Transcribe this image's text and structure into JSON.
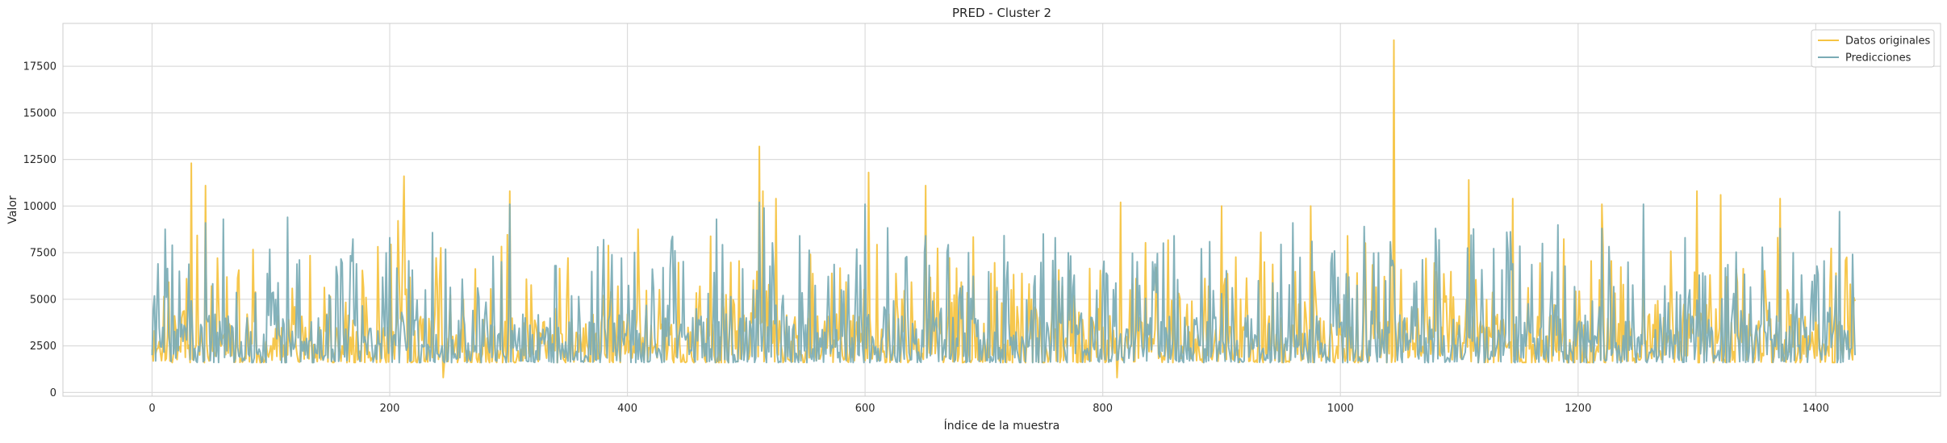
{
  "chart_data": {
    "type": "line",
    "title": "PRED - Cluster 2",
    "xlabel": "Índice de la muestra",
    "ylabel": "Valor",
    "xlim": [
      -75,
      1505
    ],
    "ylim": [
      -200,
      19800
    ],
    "xticks": [
      0,
      200,
      400,
      600,
      800,
      1000,
      1200,
      1400
    ],
    "yticks": [
      0,
      2500,
      5000,
      7500,
      10000,
      12500,
      15000,
      17500
    ],
    "grid": true,
    "legend_position": "top-right",
    "series": [
      {
        "name": "Datos originales",
        "color": "#f6c443",
        "x": [
          0,
          20,
          33,
          45,
          60,
          80,
          100,
          120,
          140,
          160,
          180,
          200,
          212,
          225,
          245,
          262,
          280,
          301,
          320,
          340,
          360,
          380,
          400,
          420,
          440,
          460,
          480,
          500,
          511,
          514,
          520,
          525,
          540,
          560,
          580,
          603,
          620,
          640,
          651,
          660,
          680,
          700,
          720,
          740,
          760,
          780,
          800,
          812,
          815,
          820,
          840,
          860,
          880,
          900,
          920,
          940,
          960,
          975,
          980,
          1000,
          1020,
          1040,
          1045,
          1060,
          1080,
          1100,
          1108,
          1120,
          1130,
          1145,
          1160,
          1180,
          1200,
          1220,
          1240,
          1260,
          1280,
          1300,
          1310,
          1320,
          1340,
          1360,
          1370,
          1380,
          1400,
          1420,
          1433
        ],
        "y": [
          2300,
          3400,
          12300,
          11100,
          3000,
          4200,
          2500,
          4600,
          3300,
          2500,
          5100,
          3200,
          11600,
          3800,
          800,
          5000,
          3000,
          10800,
          3500,
          4500,
          3100,
          5200,
          4200,
          3600,
          2900,
          4500,
          5300,
          3800,
          13200,
          10800,
          4400,
          10400,
          3600,
          4100,
          2800,
          11800,
          4200,
          3900,
          11100,
          3100,
          4300,
          3700,
          2800,
          5000,
          3400,
          4300,
          3500,
          800,
          10200,
          3000,
          3600,
          4400,
          3100,
          10000,
          3800,
          4100,
          3600,
          10000,
          4300,
          3100,
          5200,
          3800,
          18900,
          4500,
          3300,
          4100,
          11400,
          3600,
          4100,
          10400,
          3200,
          4700,
          3800,
          10100,
          3600,
          4200,
          3200,
          10800,
          3900,
          10600,
          3700,
          4400,
          10400,
          3500,
          4300,
          3800,
          4900
        ]
      },
      {
        "name": "Predicciones",
        "color": "#7aabb5",
        "x": [
          0,
          5,
          17,
          30,
          45,
          60,
          80,
          100,
          114,
          130,
          150,
          172,
          190,
          200,
          210,
          230,
          250,
          270,
          301,
          320,
          340,
          360,
          380,
          400,
          420,
          440,
          460,
          475,
          500,
          511,
          515,
          530,
          545,
          560,
          580,
          600,
          620,
          640,
          651,
          660,
          680,
          700,
          720,
          740,
          760,
          780,
          800,
          820,
          840,
          860,
          880,
          900,
          920,
          940,
          960,
          980,
          1000,
          1020,
          1040,
          1060,
          1080,
          1100,
          1120,
          1140,
          1160,
          1180,
          1200,
          1220,
          1240,
          1255,
          1270,
          1290,
          1310,
          1330,
          1350,
          1370,
          1390,
          1410,
          1420,
          1433
        ],
        "y": [
          2000,
          6900,
          7900,
          4100,
          9100,
          9300,
          4000,
          3600,
          9400,
          2900,
          5000,
          6900,
          3300,
          8300,
          4300,
          5500,
          3100,
          4400,
          10100,
          3100,
          6800,
          3800,
          8200,
          3800,
          3400,
          7600,
          3900,
          9300,
          4000,
          10200,
          9900,
          4600,
          8400,
          3200,
          5500,
          10100,
          3500,
          3700,
          8400,
          4000,
          5600,
          3200,
          7000,
          4400,
          8300,
          3200,
          6300,
          3400,
          4000,
          8400,
          3200,
          5300,
          4000,
          3700,
          9100,
          4100,
          3700,
          8900,
          3500,
          4600,
          8800,
          3600,
          4100,
          8600,
          3200,
          4100,
          3700,
          8800,
          3800,
          10100,
          3400,
          8300,
          3900,
          4500,
          3600,
          8800,
          3500,
          4300,
          9700,
          2000
        ]
      }
    ]
  }
}
